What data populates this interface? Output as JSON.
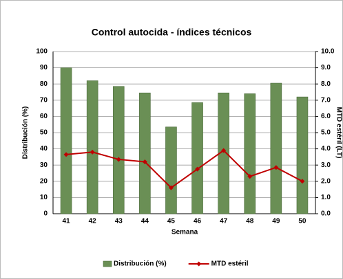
{
  "chart_data": {
    "type": "bar",
    "title": "Control autocida - índices técnicos",
    "x_label": "Semana",
    "y_label": "Distribución (%)",
    "y2_label": "MTD estéril (LT)",
    "categories": [
      "41",
      "42",
      "43",
      "44",
      "45",
      "46",
      "47",
      "48",
      "49",
      "50"
    ],
    "series": [
      {
        "name": "Distribución (%)",
        "type": "bar",
        "color": "#6a8f55",
        "values": [
          90,
          82,
          78.5,
          74.5,
          53.5,
          68.5,
          74.5,
          74,
          80.5,
          72
        ]
      },
      {
        "name": "MTD estéril",
        "type": "line",
        "axis": "y2",
        "color": "#c00000",
        "values": [
          3.65,
          3.8,
          3.35,
          3.2,
          1.6,
          2.75,
          3.9,
          2.3,
          2.85,
          2.0
        ]
      }
    ],
    "ylim": [
      0,
      100
    ],
    "yticks": [
      0,
      10,
      20,
      30,
      40,
      50,
      60,
      70,
      80,
      90,
      100
    ],
    "y2lim": [
      0,
      10
    ],
    "y2ticks": [
      {
        "value": 0,
        "label": "0.0"
      },
      {
        "value": 1,
        "label": "1.0"
      },
      {
        "value": 2,
        "label": "2.0"
      },
      {
        "value": 3,
        "label": "3.0"
      },
      {
        "value": 4,
        "label": "4.0"
      },
      {
        "value": 5,
        "label": "5.0"
      },
      {
        "value": 6,
        "label": "6.0"
      },
      {
        "value": 7,
        "label": "7.0"
      },
      {
        "value": 8,
        "label": "8.0"
      },
      {
        "value": 9,
        "label": "9.0"
      },
      {
        "value": 10,
        "label": "10.0"
      }
    ],
    "grid": true,
    "legend": "bottom"
  }
}
